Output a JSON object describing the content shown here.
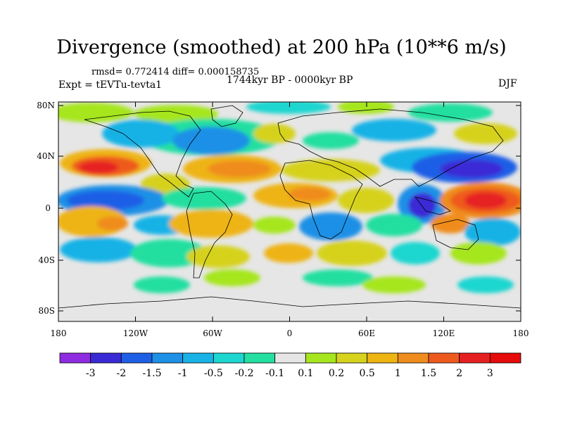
{
  "map": {
    "title": "Divergence (smoothed) at 200 hPa (10**6 m/s)",
    "stats": "rmsd= 0.772414  diff= 0.000158735",
    "experiment": "Expt = tEVTu-tevta1",
    "period": "1744kyr BP - 0000kyr BP",
    "season": "DJF",
    "lat_ticks": [
      "80N",
      "40N",
      "0",
      "40S",
      "80S"
    ],
    "lon_ticks": [
      "180",
      "120W",
      "60W",
      "0",
      "60E",
      "120E",
      "180"
    ]
  },
  "colorbar": {
    "labels": [
      "-3",
      "-2",
      "-1.5",
      "-1",
      "-0.5",
      "-0.2",
      "-0.1",
      "0.1",
      "0.2",
      "0.5",
      "1",
      "1.5",
      "2",
      "3"
    ],
    "colors": [
      "#8f2be0",
      "#3a2ad6",
      "#1f5fe6",
      "#1e90e6",
      "#18b2e6",
      "#1ed6d0",
      "#24dfa0",
      "#e6e6e6",
      "#a6e61e",
      "#d6d21e",
      "#eeb414",
      "#ef8c1e",
      "#ee5a1e",
      "#e62020",
      "#e60a0a"
    ]
  },
  "colors": {
    "land_outline": "#000000",
    "neutral": "#e6e6e6"
  }
}
